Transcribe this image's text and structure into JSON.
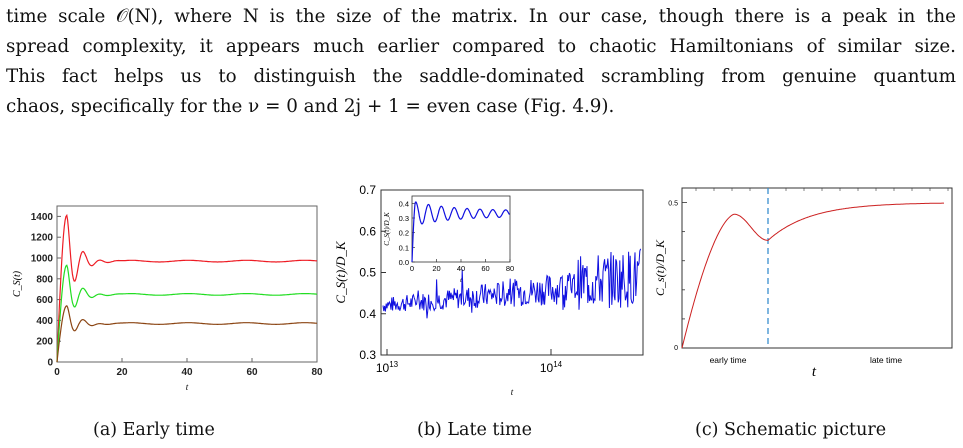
{
  "paragraph": {
    "lines": [
      "time scale 𝒪(N), where N is the size of the matrix. In our case, though there is a peak in the",
      "spread complexity, it appears much earlier compared to chaotic Hamiltonians of similar size.",
      "This fact helps us to distinguish the saddle-dominated scrambling from genuine quantum",
      "chaos, specifically for the ν = 0 and 2j + 1 = even case (Fig. 4.9)."
    ]
  },
  "captions": {
    "a": "(a) Early time",
    "b": "(b) Late time",
    "c": "(c) Schematic picture"
  },
  "colors": {
    "red": "#ee1c24",
    "green": "#22dd22",
    "brown": "#8b4513",
    "blue": "#1010e0",
    "schematic": "#cc2020",
    "dashed": "#3a8fd0"
  },
  "chart_data": [
    {
      "type": "line",
      "xlabel": "t",
      "ylabel": "C_S(t)",
      "xlim": [
        0,
        80
      ],
      "ylim": [
        0,
        1500
      ],
      "x_ticks": [
        "0",
        "20",
        "40",
        "60",
        "80"
      ],
      "y_ticks": [
        "0",
        "200",
        "400",
        "600",
        "800",
        "1000",
        "1200",
        "1400"
      ],
      "series": [
        {
          "color": "red",
          "peak": [
            3,
            1410
          ],
          "plateau": 970
        },
        {
          "color": "green",
          "peak": [
            3,
            930
          ],
          "plateau": 650
        },
        {
          "color": "brown",
          "peak": [
            3,
            540
          ],
          "plateau": 370
        }
      ]
    },
    {
      "type": "line",
      "xlabel": "t",
      "ylabel": "C_S(t)/D_K",
      "xscale": "log",
      "xlim": [
        "10^12.9",
        "10^14.5"
      ],
      "ylim": [
        0.3,
        0.7
      ],
      "x_ticks": [
        "10^13",
        "10^14"
      ],
      "y_ticks": [
        "0.3",
        "0.4",
        "0.5",
        "0.6",
        "0.7"
      ],
      "series": [
        {
          "color": "blue",
          "mean_start": 0.42,
          "mean_end": 0.48
        }
      ],
      "inset": {
        "xlabel": "t",
        "ylabel": "C_S(t)/D_K",
        "xlim": [
          0,
          80
        ],
        "ylim": [
          0,
          0.45
        ],
        "x_ticks": [
          "0",
          "20",
          "40",
          "60",
          "80"
        ],
        "y_ticks": [
          "0.0",
          "0.1",
          "0.2",
          "0.3",
          "0.4"
        ],
        "peak": [
          3,
          0.41
        ],
        "plateau": 0.33
      }
    },
    {
      "type": "line",
      "xlabel": "t",
      "ylabel": "C_s(t)/D_K",
      "y_ticks": [
        "0",
        "0.5"
      ],
      "regions": [
        "early time",
        "late time"
      ],
      "peak_y": 0.46,
      "dip_y": 0.37,
      "plateau": 0.5
    }
  ]
}
